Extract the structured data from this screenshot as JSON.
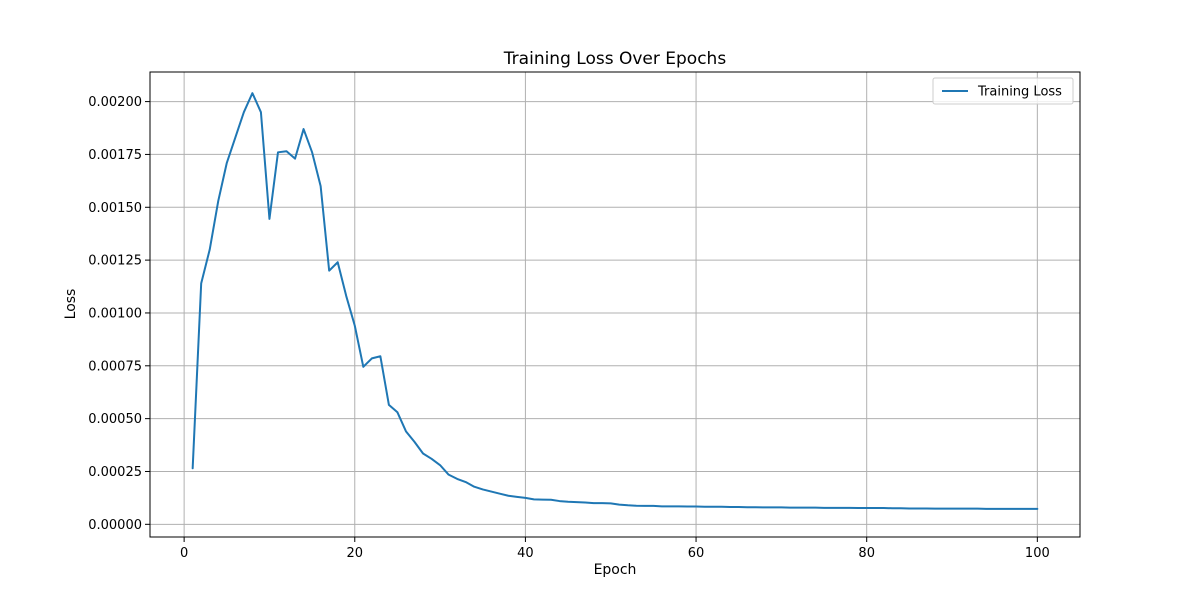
{
  "chart_data": {
    "type": "line",
    "title": "Training Loss Over Epochs",
    "xlabel": "Epoch",
    "ylabel": "Loss",
    "xlim": [
      -4,
      105
    ],
    "ylim": [
      -6e-05,
      0.00214
    ],
    "x_ticks": [
      0,
      20,
      40,
      60,
      80,
      100
    ],
    "x_tick_labels": [
      "0",
      "20",
      "40",
      "60",
      "80",
      "100"
    ],
    "y_ticks": [
      0,
      0.00025,
      0.0005,
      0.00075,
      0.001,
      0.00125,
      0.0015,
      0.00175,
      0.002
    ],
    "y_tick_labels": [
      "0.00000",
      "0.00025",
      "0.00050",
      "0.00075",
      "0.00100",
      "0.00125",
      "0.00150",
      "0.00175",
      "0.00200"
    ],
    "grid": true,
    "legend": {
      "position": "top-right",
      "entries": [
        "Training Loss"
      ]
    },
    "colors": {
      "series": "#1f77b4",
      "grid": "#b0b0b0",
      "axes": "#000000"
    },
    "x": [
      1,
      2,
      3,
      4,
      5,
      6,
      7,
      8,
      9,
      10,
      11,
      12,
      13,
      14,
      15,
      16,
      17,
      18,
      19,
      20,
      21,
      22,
      23,
      24,
      25,
      26,
      27,
      28,
      29,
      30,
      31,
      32,
      33,
      34,
      35,
      36,
      37,
      38,
      39,
      40,
      41,
      42,
      43,
      44,
      45,
      46,
      47,
      48,
      49,
      50,
      51,
      52,
      53,
      54,
      55,
      56,
      57,
      58,
      59,
      60,
      61,
      62,
      63,
      64,
      65,
      66,
      67,
      68,
      69,
      70,
      71,
      72,
      73,
      74,
      75,
      76,
      77,
      78,
      79,
      80,
      81,
      82,
      83,
      84,
      85,
      86,
      87,
      88,
      89,
      90,
      91,
      92,
      93,
      94,
      95,
      96,
      97,
      98,
      99,
      100
    ],
    "series": [
      {
        "name": "Training Loss",
        "values": [
          0.000265,
          0.00114,
          0.0013,
          0.00153,
          0.00171,
          0.00183,
          0.00195,
          0.00204,
          0.00195,
          0.001445,
          0.00176,
          0.001765,
          0.00173,
          0.00187,
          0.00176,
          0.0016,
          0.0012,
          0.00124,
          0.00108,
          0.00094,
          0.000745,
          0.000785,
          0.000795,
          0.000565,
          0.00053,
          0.00044,
          0.00039,
          0.000335,
          0.00031,
          0.00028,
          0.000235,
          0.000215,
          0.0002,
          0.000178,
          0.000165,
          0.000155,
          0.000145,
          0.000135,
          0.00013,
          0.000125,
          0.000118,
          0.000117,
          0.000116,
          0.00011,
          0.000107,
          0.000105,
          0.000103,
          0.0001,
          0.0001,
          9.9e-05,
          9.3e-05,
          9e-05,
          8.8e-05,
          8.7e-05,
          8.7e-05,
          8.5e-05,
          8.5e-05,
          8.5e-05,
          8.4e-05,
          8.4e-05,
          8.3e-05,
          8.3e-05,
          8.3e-05,
          8.2e-05,
          8.2e-05,
          8.1e-05,
          8.1e-05,
          8e-05,
          8e-05,
          8e-05,
          7.9e-05,
          7.9e-05,
          7.9e-05,
          7.9e-05,
          7.8e-05,
          7.8e-05,
          7.8e-05,
          7.8e-05,
          7.7e-05,
          7.7e-05,
          7.7e-05,
          7.7e-05,
          7.6e-05,
          7.6e-05,
          7.5e-05,
          7.5e-05,
          7.5e-05,
          7.4e-05,
          7.4e-05,
          7.4e-05,
          7.4e-05,
          7.4e-05,
          7.4e-05,
          7.3e-05,
          7.3e-05,
          7.3e-05,
          7.3e-05,
          7.3e-05,
          7.3e-05,
          7.3e-05
        ]
      }
    ]
  }
}
